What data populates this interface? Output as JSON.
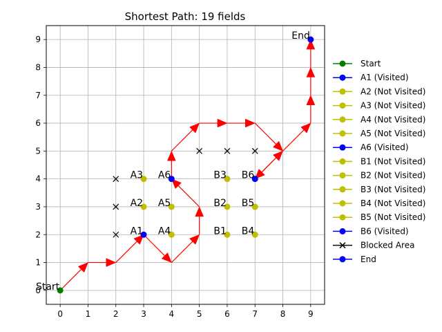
{
  "chart_data": {
    "type": "scatter",
    "title": "Shortest Path: 19 fields",
    "xlabel": "",
    "ylabel": "",
    "xlim": [
      -0.5,
      9.5
    ],
    "ylim": [
      -0.5,
      9.5
    ],
    "xticks": [
      0,
      1,
      2,
      3,
      4,
      5,
      6,
      7,
      8,
      9
    ],
    "yticks": [
      0,
      1,
      2,
      3,
      4,
      5,
      6,
      7,
      8,
      9
    ],
    "grid": true,
    "legend_position": "right",
    "colors": {
      "start": "#008000",
      "visited": "#0000ff",
      "not_visited": "#bfbf00",
      "blocked": "#000000",
      "end": "#0000ff",
      "path": "#ff0000"
    },
    "points": [
      {
        "label": "Start",
        "x": 0,
        "y": 0,
        "kind": "start"
      },
      {
        "label": "A1",
        "x": 3,
        "y": 2,
        "kind": "visited"
      },
      {
        "label": "A2",
        "x": 3,
        "y": 3,
        "kind": "not_visited"
      },
      {
        "label": "A3",
        "x": 3,
        "y": 4,
        "kind": "not_visited"
      },
      {
        "label": "A4",
        "x": 4,
        "y": 2,
        "kind": "not_visited"
      },
      {
        "label": "A5",
        "x": 4,
        "y": 3,
        "kind": "not_visited"
      },
      {
        "label": "A6",
        "x": 4,
        "y": 4,
        "kind": "visited"
      },
      {
        "label": "B1",
        "x": 6,
        "y": 2,
        "kind": "not_visited"
      },
      {
        "label": "B2",
        "x": 6,
        "y": 3,
        "kind": "not_visited"
      },
      {
        "label": "B3",
        "x": 6,
        "y": 4,
        "kind": "not_visited"
      },
      {
        "label": "B4",
        "x": 7,
        "y": 2,
        "kind": "not_visited"
      },
      {
        "label": "B5",
        "x": 7,
        "y": 3,
        "kind": "not_visited"
      },
      {
        "label": "B6",
        "x": 7,
        "y": 4,
        "kind": "visited"
      },
      {
        "label": "End",
        "x": 9,
        "y": 9,
        "kind": "end"
      }
    ],
    "blocked": [
      {
        "x": 2,
        "y": 2
      },
      {
        "x": 2,
        "y": 3
      },
      {
        "x": 2,
        "y": 4
      },
      {
        "x": 5,
        "y": 5
      },
      {
        "x": 6,
        "y": 5
      },
      {
        "x": 7,
        "y": 5
      }
    ],
    "path": [
      [
        0,
        0
      ],
      [
        1,
        1
      ],
      [
        2,
        1
      ],
      [
        3,
        2
      ],
      [
        4,
        1
      ],
      [
        5,
        2
      ],
      [
        5,
        3
      ],
      [
        4,
        4
      ],
      [
        4,
        5
      ],
      [
        5,
        6
      ],
      [
        6,
        6
      ],
      [
        7,
        6
      ],
      [
        8,
        5
      ],
      [
        7,
        4
      ],
      [
        8,
        5
      ],
      [
        9,
        6
      ],
      [
        9,
        7
      ],
      [
        9,
        8
      ],
      [
        9,
        9
      ]
    ],
    "legend": [
      {
        "label": "Start",
        "color": "#008000",
        "marker": "circle"
      },
      {
        "label": "A1 (Visited)",
        "color": "#0000ff",
        "marker": "circle"
      },
      {
        "label": "A2 (Not Visited)",
        "color": "#bfbf00",
        "marker": "circle"
      },
      {
        "label": "A3 (Not Visited)",
        "color": "#bfbf00",
        "marker": "circle"
      },
      {
        "label": "A4 (Not Visited)",
        "color": "#bfbf00",
        "marker": "circle"
      },
      {
        "label": "A5 (Not Visited)",
        "color": "#bfbf00",
        "marker": "circle"
      },
      {
        "label": "A6 (Visited)",
        "color": "#0000ff",
        "marker": "circle"
      },
      {
        "label": "B1 (Not Visited)",
        "color": "#bfbf00",
        "marker": "circle"
      },
      {
        "label": "B2 (Not Visited)",
        "color": "#bfbf00",
        "marker": "circle"
      },
      {
        "label": "B3 (Not Visited)",
        "color": "#bfbf00",
        "marker": "circle"
      },
      {
        "label": "B4 (Not Visited)",
        "color": "#bfbf00",
        "marker": "circle"
      },
      {
        "label": "B5 (Not Visited)",
        "color": "#bfbf00",
        "marker": "circle"
      },
      {
        "label": "B6 (Visited)",
        "color": "#0000ff",
        "marker": "circle"
      },
      {
        "label": "Blocked Area",
        "color": "#000000",
        "marker": "x"
      },
      {
        "label": "End",
        "color": "#0000ff",
        "marker": "circle"
      }
    ]
  }
}
